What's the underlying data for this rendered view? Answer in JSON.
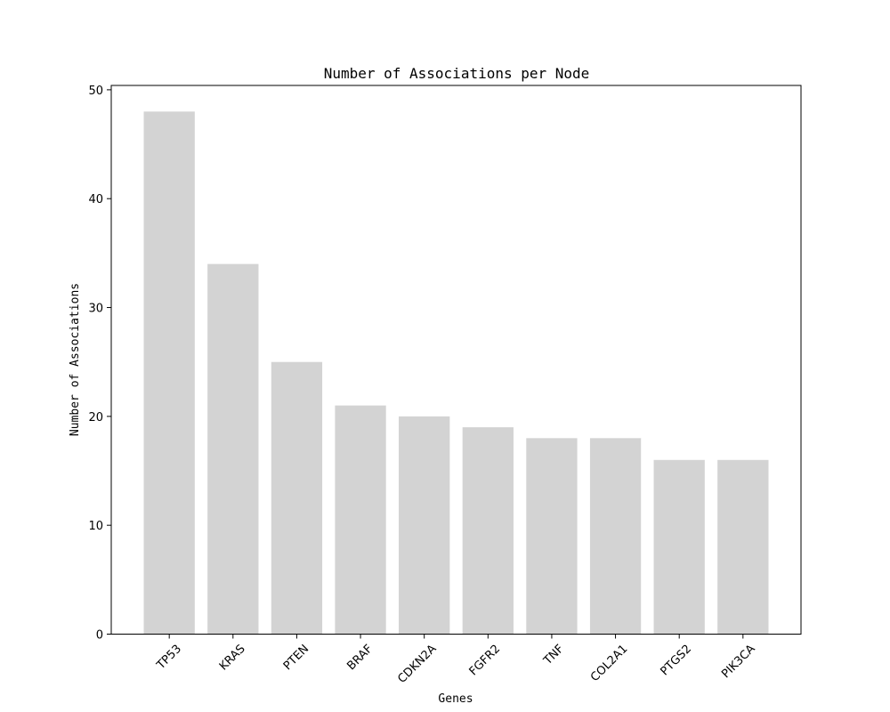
{
  "chart_data": {
    "type": "bar",
    "title": "Number of Associations per Node",
    "xlabel": "Genes",
    "ylabel": "Number of Associations",
    "categories": [
      "TP53",
      "KRAS",
      "PTEN",
      "BRAF",
      "CDKN2A",
      "FGFR2",
      "TNF",
      "COL2A1",
      "PTGS2",
      "PIK3CA"
    ],
    "values": [
      48,
      34,
      25,
      21,
      20,
      19,
      18,
      18,
      16,
      16
    ],
    "ylim": [
      0,
      50.4
    ],
    "yticks": [
      0,
      10,
      20,
      30,
      40,
      50
    ],
    "bar_color": "#d3d3d3",
    "grid": false,
    "legend": "none"
  }
}
